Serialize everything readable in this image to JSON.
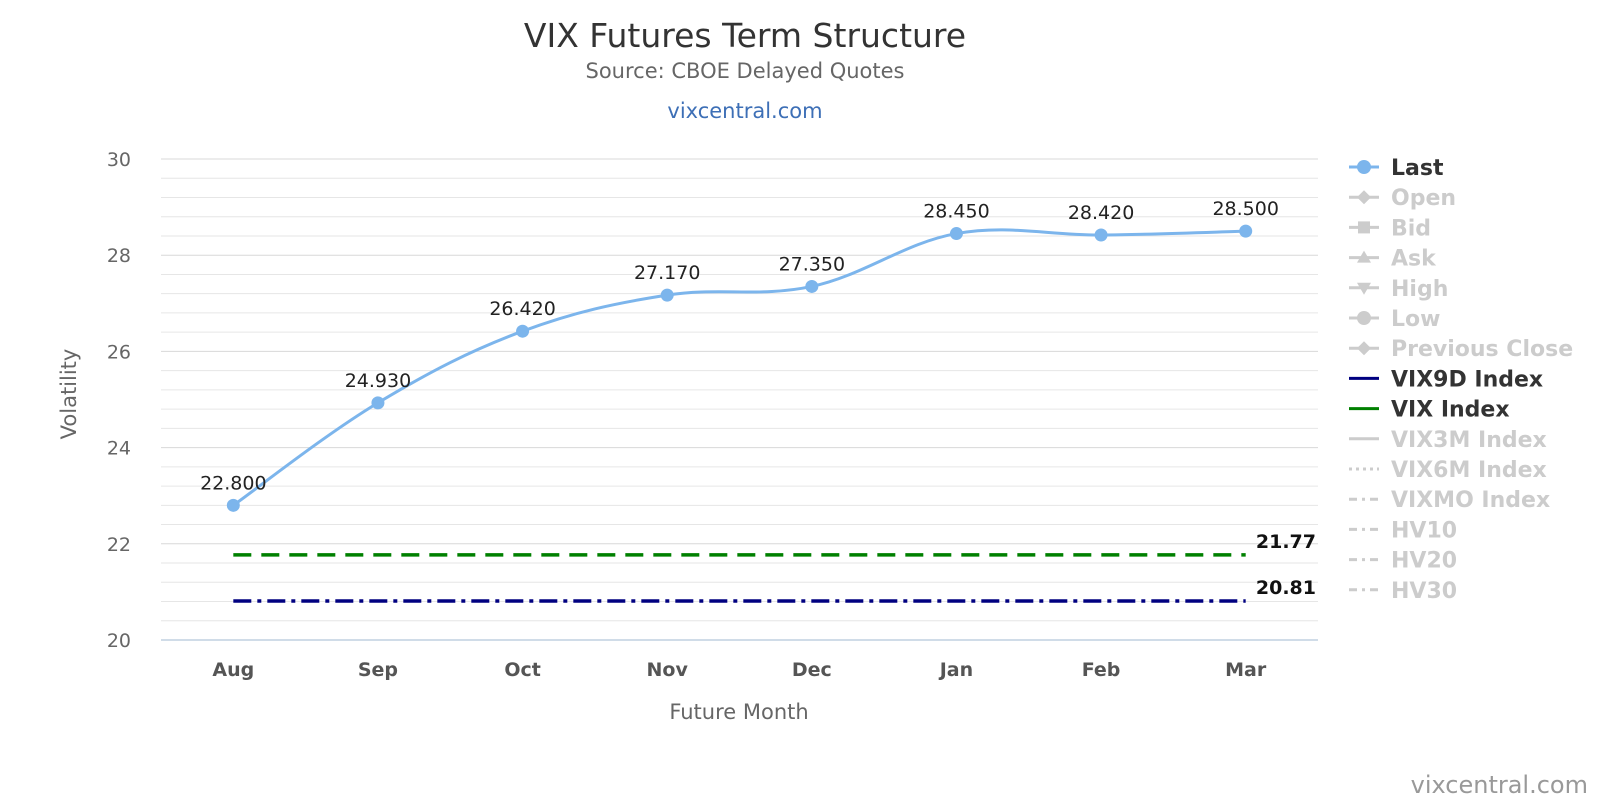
{
  "chart_data": {
    "type": "line",
    "title": "VIX Futures Term Structure",
    "subtitle": "Source: CBOE Delayed Quotes",
    "link_text": "vixcentral.com",
    "credit": "vixcentral.com",
    "xlabel": "Future Month",
    "ylabel": "Volatility",
    "ylim": [
      20,
      30
    ],
    "yticks": [
      20,
      22,
      24,
      26,
      28,
      30
    ],
    "grid": true,
    "legend_position": "right",
    "categories": [
      "Aug",
      "Sep",
      "Oct",
      "Nov",
      "Dec",
      "Jan",
      "Feb",
      "Mar"
    ],
    "series": [
      {
        "name": "Last",
        "values": [
          22.8,
          24.93,
          26.42,
          27.17,
          27.35,
          28.45,
          28.42,
          28.5
        ],
        "labels": [
          "22.800",
          "24.930",
          "26.420",
          "27.170",
          "27.350",
          "28.450",
          "28.420",
          "28.500"
        ],
        "color": "#7cb5ec",
        "visible": true
      }
    ],
    "reference_lines": [
      {
        "name": "VIX Index",
        "value": 21.77,
        "label": "21.77",
        "color": "#008000",
        "dash": "dash"
      },
      {
        "name": "VIX9D Index",
        "value": 20.81,
        "label": "20.81",
        "color": "#000080",
        "dash": "dashdot"
      }
    ],
    "legend": [
      {
        "name": "Last",
        "active": true,
        "color": "#7cb5ec",
        "symbol": "line-circle"
      },
      {
        "name": "Open",
        "active": false,
        "symbol": "line-diamond"
      },
      {
        "name": "Bid",
        "active": false,
        "symbol": "line-square"
      },
      {
        "name": "Ask",
        "active": false,
        "symbol": "line-triangle"
      },
      {
        "name": "High",
        "active": false,
        "symbol": "line-triangle-down"
      },
      {
        "name": "Low",
        "active": false,
        "symbol": "line-circle"
      },
      {
        "name": "Previous Close",
        "active": false,
        "symbol": "line-diamond"
      },
      {
        "name": "VIX9D Index",
        "active": true,
        "color": "#000080",
        "symbol": "line"
      },
      {
        "name": "VIX Index",
        "active": true,
        "color": "#008000",
        "symbol": "line"
      },
      {
        "name": "VIX3M Index",
        "active": false,
        "symbol": "line"
      },
      {
        "name": "VIX6M Index",
        "active": false,
        "symbol": "dotted"
      },
      {
        "name": "VIXMO Index",
        "active": false,
        "symbol": "dashdot"
      },
      {
        "name": "HV10",
        "active": false,
        "symbol": "dashdot"
      },
      {
        "name": "HV20",
        "active": false,
        "symbol": "dashdot"
      },
      {
        "name": "HV30",
        "active": false,
        "symbol": "dashdot"
      }
    ],
    "inactive_color": "#cccccc",
    "active_text_color": "#333333"
  }
}
